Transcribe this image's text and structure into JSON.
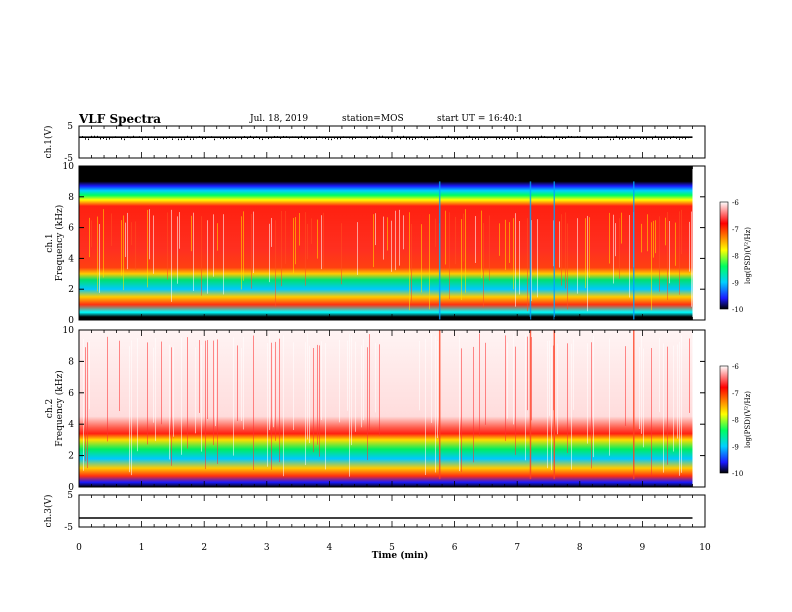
{
  "header": {
    "title": "VLF Spectra",
    "date": "Jul. 18, 2019",
    "station": "station=MOS",
    "start_ut": "start UT =  16:40:1"
  },
  "chart_data": [
    {
      "type": "line",
      "panel": "ch1-waveform",
      "ylabel": "ch.1(V)",
      "ylim": [
        -5,
        5
      ],
      "yticks": [
        "5",
        "-5"
      ],
      "series": [
        {
          "values": [
            1.5,
            1.5,
            1.5,
            1.5,
            1.5,
            1.5,
            1.5,
            1.5,
            1.5,
            1.5,
            1.5
          ]
        }
      ],
      "x": [
        0,
        1,
        2,
        3,
        4,
        5,
        6,
        7,
        8,
        9,
        9.8
      ]
    },
    {
      "type": "heatmap",
      "panel": "ch1-spectrogram",
      "ylabel": "ch.1 Frequency (kHz)",
      "yticks": [
        "0",
        "2",
        "4",
        "6",
        "8",
        "10"
      ],
      "ylim": [
        0,
        10
      ],
      "xlim": [
        0,
        10
      ],
      "data_end_min": 9.8,
      "colorbar": {
        "label": "log(PSD)(V²/Hz)",
        "ticks": [
          "-6",
          "-7",
          "-8",
          "-9",
          "-10"
        ],
        "range": [
          -10,
          -6
        ]
      },
      "colormap": [
        "#000000",
        "#1a1aff",
        "#00d0ff",
        "#00ff60",
        "#ffff00",
        "#ff0000",
        "#ffffff"
      ]
    },
    {
      "type": "heatmap",
      "panel": "ch2-spectrogram",
      "ylabel": "ch.2 Frequency (kHz)",
      "yticks": [
        "0",
        "2",
        "4",
        "6",
        "8",
        "10"
      ],
      "ylim": [
        0,
        10
      ],
      "xlim": [
        0,
        10
      ],
      "data_end_min": 9.8,
      "colorbar": {
        "label": "log(PSD)(V²/Hz)",
        "ticks": [
          "-6",
          "-7",
          "-8",
          "-9",
          "-10"
        ],
        "range": [
          -10,
          -6
        ]
      },
      "colormap": [
        "#000000",
        "#1a1aff",
        "#00d0ff",
        "#00ff60",
        "#ffff00",
        "#ff0000",
        "#ffffff"
      ]
    },
    {
      "type": "line",
      "panel": "ch3-waveform",
      "ylabel": "ch.3(V)",
      "ylim": [
        -5,
        5
      ],
      "yticks": [
        "5",
        "-5"
      ],
      "series": [
        {
          "values": [
            -2.2,
            -2.2,
            -2.2,
            -2.2,
            -2.2,
            -2.2,
            -2.2,
            -2.2,
            -2.2,
            -2.2,
            -2.2
          ]
        }
      ],
      "x": [
        0,
        1,
        2,
        3,
        4,
        5,
        6,
        7,
        8,
        9,
        9.8
      ]
    }
  ],
  "xaxis": {
    "label": "Time (min)",
    "ticks": [
      "0",
      "1",
      "2",
      "3",
      "4",
      "5",
      "6",
      "7",
      "8",
      "9",
      "10"
    ]
  }
}
